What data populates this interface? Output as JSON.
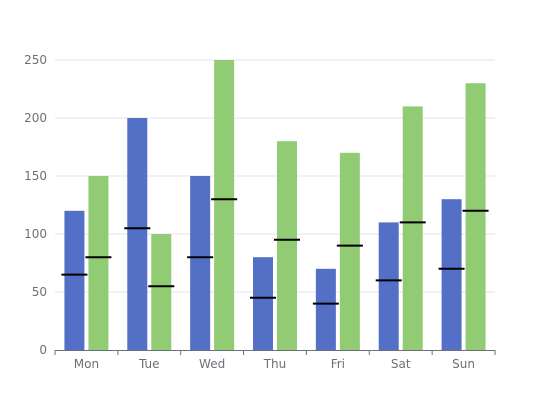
{
  "chart_data": {
    "type": "bar",
    "categories": [
      "Mon",
      "Tue",
      "Wed",
      "Thu",
      "Fri",
      "Sat",
      "Sun"
    ],
    "series": [
      {
        "values": [
          120,
          200,
          150,
          80,
          70,
          110,
          130
        ],
        "color": "#5470c6"
      },
      {
        "values": [
          150,
          100,
          250,
          180,
          170,
          210,
          230
        ],
        "color": "#91cc75"
      }
    ],
    "markers": [
      {
        "values": [
          65,
          105,
          80,
          45,
          40,
          60,
          70
        ],
        "color": "#000000"
      },
      {
        "values": [
          80,
          55,
          130,
          95,
          90,
          110,
          120
        ],
        "color": "#000000"
      }
    ],
    "yticks": [
      "0",
      "50",
      "100",
      "150",
      "200",
      "250"
    ],
    "ylim": [
      0,
      250
    ],
    "grid": true,
    "legend": "none"
  }
}
